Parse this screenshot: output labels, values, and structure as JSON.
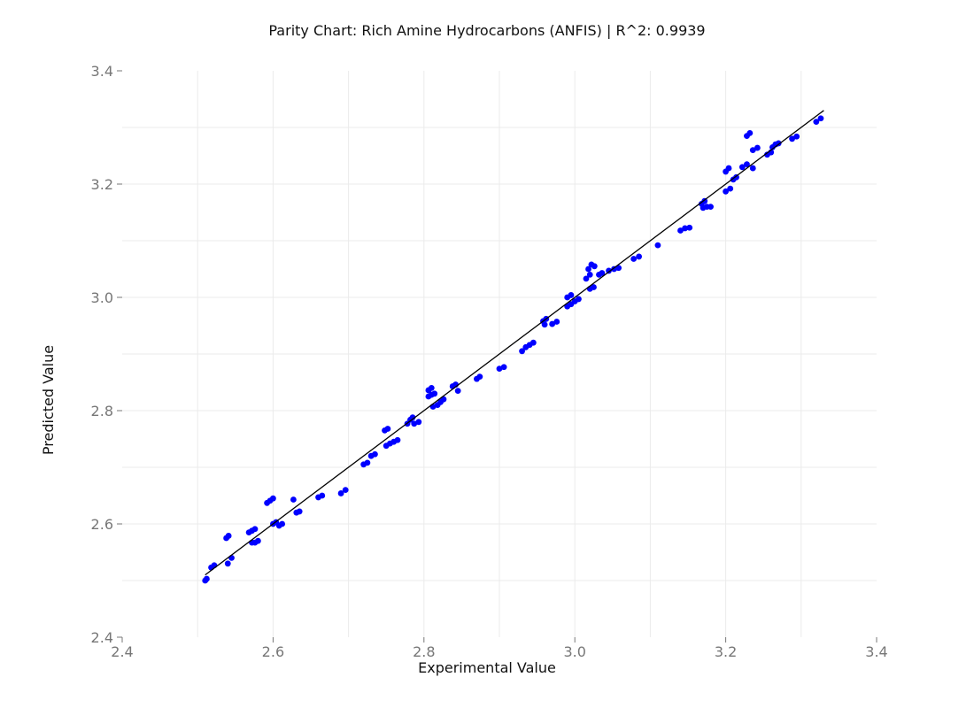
{
  "chart_data": {
    "type": "scatter",
    "title": "Parity Chart: Rich Amine Hydrocarbons (ANFIS) | R^2: 0.9939",
    "xlabel": "Experimental Value",
    "ylabel": "Predicted Value",
    "xlim": [
      2.4,
      3.4
    ],
    "ylim": [
      2.4,
      3.4
    ],
    "xticks": [
      "2.4",
      "2.6",
      "2.8",
      "3.0",
      "3.2",
      "3.4"
    ],
    "yticks": [
      "2.4",
      "2.6",
      "2.8",
      "3.0",
      "3.2",
      "3.4"
    ],
    "grid": true,
    "colors": {
      "points": "#0000ff",
      "line": "#000000",
      "grid": "#ebebeb",
      "ticks": "#777777"
    },
    "parity_line": {
      "x": [
        2.51,
        3.33
      ],
      "y": [
        2.51,
        3.33
      ]
    },
    "series": [
      {
        "points": [
          [
            2.51,
            2.5
          ],
          [
            2.512,
            2.503
          ],
          [
            2.518,
            2.523
          ],
          [
            2.522,
            2.527
          ],
          [
            2.538,
            2.575
          ],
          [
            2.541,
            2.579
          ],
          [
            2.54,
            2.53
          ],
          [
            2.545,
            2.54
          ],
          [
            2.568,
            2.585
          ],
          [
            2.572,
            2.588
          ],
          [
            2.576,
            2.591
          ],
          [
            2.572,
            2.567
          ],
          [
            2.576,
            2.567
          ],
          [
            2.58,
            2.57
          ],
          [
            2.592,
            2.637
          ],
          [
            2.596,
            2.641
          ],
          [
            2.6,
            2.645
          ],
          [
            2.6,
            2.6
          ],
          [
            2.604,
            2.603
          ],
          [
            2.608,
            2.597
          ],
          [
            2.612,
            2.6
          ],
          [
            2.627,
            2.643
          ],
          [
            2.631,
            2.62
          ],
          [
            2.635,
            2.622
          ],
          [
            2.66,
            2.647
          ],
          [
            2.665,
            2.65
          ],
          [
            2.69,
            2.654
          ],
          [
            2.696,
            2.66
          ],
          [
            2.72,
            2.705
          ],
          [
            2.725,
            2.708
          ],
          [
            2.73,
            2.72
          ],
          [
            2.735,
            2.723
          ],
          [
            2.748,
            2.765
          ],
          [
            2.752,
            2.768
          ],
          [
            2.75,
            2.738
          ],
          [
            2.755,
            2.742
          ],
          [
            2.76,
            2.745
          ],
          [
            2.765,
            2.748
          ],
          [
            2.778,
            2.777
          ],
          [
            2.782,
            2.784
          ],
          [
            2.785,
            2.788
          ],
          [
            2.787,
            2.777
          ],
          [
            2.793,
            2.78
          ],
          [
            2.806,
            2.836
          ],
          [
            2.81,
            2.84
          ],
          [
            2.806,
            2.825
          ],
          [
            2.81,
            2.828
          ],
          [
            2.814,
            2.83
          ],
          [
            2.812,
            2.807
          ],
          [
            2.818,
            2.81
          ],
          [
            2.822,
            2.815
          ],
          [
            2.826,
            2.82
          ],
          [
            2.838,
            2.843
          ],
          [
            2.842,
            2.846
          ],
          [
            2.845,
            2.835
          ],
          [
            2.87,
            2.856
          ],
          [
            2.874,
            2.86
          ],
          [
            2.9,
            2.874
          ],
          [
            2.906,
            2.877
          ],
          [
            2.93,
            2.905
          ],
          [
            2.935,
            2.912
          ],
          [
            2.94,
            2.916
          ],
          [
            2.945,
            2.92
          ],
          [
            2.958,
            2.958
          ],
          [
            2.962,
            2.962
          ],
          [
            2.96,
            2.952
          ],
          [
            2.97,
            2.953
          ],
          [
            2.976,
            2.957
          ],
          [
            2.99,
            3.0
          ],
          [
            2.995,
            3.004
          ],
          [
            2.99,
            2.984
          ],
          [
            2.995,
            2.988
          ],
          [
            3.0,
            2.993
          ],
          [
            3.005,
            2.997
          ],
          [
            3.018,
            3.05
          ],
          [
            3.022,
            3.058
          ],
          [
            3.026,
            3.055
          ],
          [
            3.015,
            3.033
          ],
          [
            3.02,
            3.04
          ],
          [
            3.02,
            3.015
          ],
          [
            3.025,
            3.018
          ],
          [
            3.032,
            3.04
          ],
          [
            3.036,
            3.043
          ],
          [
            3.045,
            3.047
          ],
          [
            3.052,
            3.05
          ],
          [
            3.058,
            3.052
          ],
          [
            3.078,
            3.068
          ],
          [
            3.085,
            3.072
          ],
          [
            3.11,
            3.092
          ],
          [
            3.14,
            3.118
          ],
          [
            3.146,
            3.122
          ],
          [
            3.152,
            3.123
          ],
          [
            3.168,
            3.165
          ],
          [
            3.172,
            3.17
          ],
          [
            3.17,
            3.158
          ],
          [
            3.175,
            3.16
          ],
          [
            3.18,
            3.16
          ],
          [
            3.2,
            3.222
          ],
          [
            3.204,
            3.228
          ],
          [
            3.2,
            3.187
          ],
          [
            3.206,
            3.192
          ],
          [
            3.21,
            3.208
          ],
          [
            3.214,
            3.212
          ],
          [
            3.222,
            3.23
          ],
          [
            3.228,
            3.235
          ],
          [
            3.228,
            3.285
          ],
          [
            3.232,
            3.29
          ],
          [
            3.236,
            3.26
          ],
          [
            3.242,
            3.264
          ],
          [
            3.236,
            3.228
          ],
          [
            3.255,
            3.252
          ],
          [
            3.26,
            3.256
          ],
          [
            3.262,
            3.265
          ],
          [
            3.266,
            3.27
          ],
          [
            3.27,
            3.272
          ],
          [
            3.288,
            3.28
          ],
          [
            3.294,
            3.284
          ],
          [
            3.32,
            3.31
          ],
          [
            3.326,
            3.316
          ]
        ]
      }
    ]
  }
}
